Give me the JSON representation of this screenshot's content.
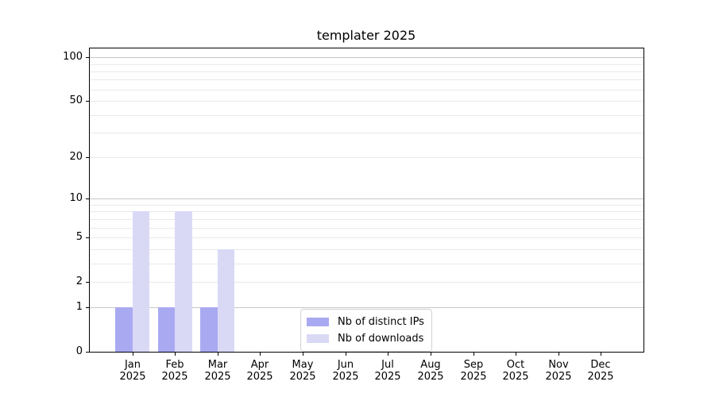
{
  "chart_data": {
    "type": "bar",
    "title": "templater 2025",
    "scale": "log10(1+x)",
    "ylim": [
      0,
      115
    ],
    "y_ticks": [
      0,
      1,
      2,
      5,
      10,
      20,
      50,
      100
    ],
    "grid": {
      "show": true,
      "major_values": [
        1,
        10,
        100
      ],
      "minor_values": [
        2,
        3,
        4,
        5,
        6,
        7,
        8,
        9,
        20,
        30,
        40,
        50,
        60,
        70,
        80,
        90
      ]
    },
    "categories": [
      "Jan",
      "Feb",
      "Mar",
      "Apr",
      "May",
      "Jun",
      "Jul",
      "Aug",
      "Sep",
      "Oct",
      "Nov",
      "Dec"
    ],
    "year_label": "2025",
    "series": [
      {
        "name": "Nb of distinct IPs",
        "color": "#a9a9f2",
        "values": [
          1,
          1,
          1,
          0,
          0,
          0,
          0,
          0,
          0,
          0,
          0,
          0
        ]
      },
      {
        "name": "Nb of downloads",
        "color": "#d9d9f6",
        "values": [
          8,
          8,
          4,
          0,
          0,
          0,
          0,
          0,
          0,
          0,
          0,
          0
        ]
      }
    ],
    "legend_position": "lower center",
    "colors": {
      "grid_major": "#c6c6c6",
      "grid_minor": "#e9e9e9",
      "spine": "#000000",
      "background": "#ffffff"
    }
  }
}
